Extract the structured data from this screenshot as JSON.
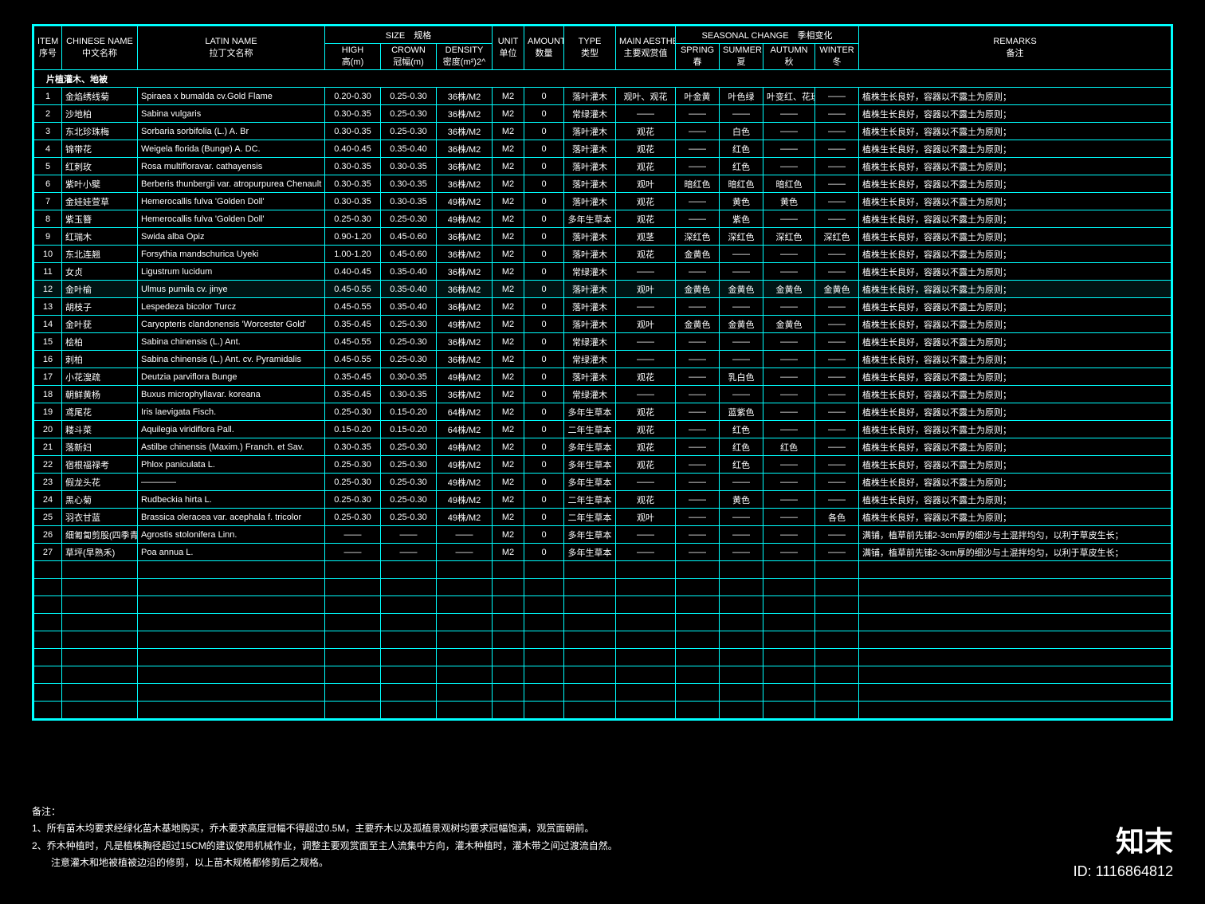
{
  "header": {
    "item": "ITEM\n序号",
    "chinese": "CHINESE NAME\n中文名称",
    "latin": "LATIN NAME\n拉丁文名称",
    "size_group": "SIZE　规格",
    "high": "HIGH\n高(m)",
    "crown": "CROWN\n冠幅(m)",
    "density": "DENSITY\n密度(m²)2^",
    "unit": "UNIT\n单位",
    "amount": "AMOUNT\n数量",
    "type": "TYPE\n类型",
    "aesthetics": "MAIN AESTHETICS\n主要观赏值",
    "seasonal_group": "SEASONAL CHANGE　季相变化",
    "spring": "SPRING\n春",
    "summer": "SUMMER\n夏",
    "autumn": "AUTUMN\n秋",
    "winter": "WINTER\n冬",
    "remarks": "REMARKS\n备注"
  },
  "section": "片植灌木、地被",
  "rows": [
    {
      "n": "1",
      "cn": "金焰绣线菊",
      "la": "Spiraea x bumalda cv.Gold Flame",
      "h": "0.20-0.30",
      "c": "0.25-0.30",
      "d": "36株/M2",
      "u": "M2",
      "a": "0",
      "t": "落叶灌木",
      "ae": "观叶、观花",
      "sp": "叶金黄",
      "su": "叶色绿",
      "au": "叶变红、花玫瑰红",
      "wi": "——",
      "r": "植株生长良好，容器以不露土为原则；"
    },
    {
      "n": "2",
      "cn": "沙地柏",
      "la": "Sabina vulgaris",
      "h": "0.30-0.35",
      "c": "0.25-0.30",
      "d": "36株/M2",
      "u": "M2",
      "a": "0",
      "t": "常绿灌木",
      "ae": "——",
      "sp": "——",
      "su": "——",
      "au": "——",
      "wi": "——",
      "r": "植株生长良好，容器以不露土为原则；"
    },
    {
      "n": "3",
      "cn": "东北珍珠梅",
      "la": "Sorbaria sorbifolia (L.) A. Br",
      "h": "0.30-0.35",
      "c": "0.25-0.30",
      "d": "36株/M2",
      "u": "M2",
      "a": "0",
      "t": "落叶灌木",
      "ae": "观花",
      "sp": "——",
      "su": "白色",
      "au": "——",
      "wi": "——",
      "r": "植株生长良好，容器以不露土为原则；"
    },
    {
      "n": "4",
      "cn": "锦带花",
      "la": "Weigela florida (Bunge) A. DC.",
      "h": "0.40-0.45",
      "c": "0.35-0.40",
      "d": "36株/M2",
      "u": "M2",
      "a": "0",
      "t": "落叶灌木",
      "ae": "观花",
      "sp": "——",
      "su": "红色",
      "au": "——",
      "wi": "——",
      "r": "植株生长良好，容器以不露土为原则；"
    },
    {
      "n": "5",
      "cn": "红刺玫",
      "la": "Rosa multifloravar. cathayensis",
      "h": "0.30-0.35",
      "c": "0.30-0.35",
      "d": "36株/M2",
      "u": "M2",
      "a": "0",
      "t": "落叶灌木",
      "ae": "观花",
      "sp": "——",
      "su": "红色",
      "au": "——",
      "wi": "——",
      "r": "植株生长良好，容器以不露土为原则；"
    },
    {
      "n": "6",
      "cn": "紫叶小檗",
      "la": "Berberis thunbergii var. atropurpurea Chenault",
      "h": "0.30-0.35",
      "c": "0.30-0.35",
      "d": "36株/M2",
      "u": "M2",
      "a": "0",
      "t": "落叶灌木",
      "ae": "观叶",
      "sp": "暗红色",
      "su": "暗红色",
      "au": "暗红色",
      "wi": "——",
      "r": "植株生长良好，容器以不露土为原则；"
    },
    {
      "n": "7",
      "cn": "金娃娃萱草",
      "la": "Hemerocallis fulva 'Golden Doll'",
      "h": "0.30-0.35",
      "c": "0.30-0.35",
      "d": "49株/M2",
      "u": "M2",
      "a": "0",
      "t": "落叶灌木",
      "ae": "观花",
      "sp": "——",
      "su": "黄色",
      "au": "黄色",
      "wi": "——",
      "r": "植株生长良好，容器以不露土为原则；"
    },
    {
      "n": "8",
      "cn": "紫玉簪",
      "la": "Hemerocallis fulva 'Golden Doll'",
      "h": "0.25-0.30",
      "c": "0.25-0.30",
      "d": "49株/M2",
      "u": "M2",
      "a": "0",
      "t": "多年生草本",
      "ae": "观花",
      "sp": "——",
      "su": "紫色",
      "au": "——",
      "wi": "——",
      "r": "植株生长良好，容器以不露土为原则；"
    },
    {
      "n": "9",
      "cn": "红瑞木",
      "la": "Swida alba Opiz",
      "h": "0.90-1.20",
      "c": "0.45-0.60",
      "d": "36株/M2",
      "u": "M2",
      "a": "0",
      "t": "落叶灌木",
      "ae": "观茎",
      "sp": "深红色",
      "su": "深红色",
      "au": "深红色",
      "wi": "深红色",
      "r": "植株生长良好，容器以不露土为原则；"
    },
    {
      "n": "10",
      "cn": "东北连翘",
      "la": "Forsythia mandschurica Uyeki",
      "h": "1.00-1.20",
      "c": "0.45-0.60",
      "d": "36株/M2",
      "u": "M2",
      "a": "0",
      "t": "落叶灌木",
      "ae": "观花",
      "sp": "金黄色",
      "su": "——",
      "au": "——",
      "wi": "——",
      "r": "植株生长良好，容器以不露土为原则；"
    },
    {
      "n": "11",
      "cn": "女贞",
      "la": "Ligustrum lucidum",
      "h": "0.40-0.45",
      "c": "0.35-0.40",
      "d": "36株/M2",
      "u": "M2",
      "a": "0",
      "t": "常绿灌木",
      "ae": "——",
      "sp": "——",
      "su": "——",
      "au": "——",
      "wi": "——",
      "r": "植株生长良好，容器以不露土为原则；"
    },
    {
      "n": "12",
      "cn": "金叶榆",
      "la": "Ulmus pumila cv. jinye",
      "h": "0.45-0.55",
      "c": "0.35-0.40",
      "d": "36株/M2",
      "u": "M2",
      "a": "0",
      "t": "落叶灌木",
      "ae": "观叶",
      "sp": "金黄色",
      "su": "金黄色",
      "au": "金黄色",
      "wi": "金黄色",
      "r": "植株生长良好，容器以不露土为原则；",
      "hl": true
    },
    {
      "n": "13",
      "cn": "胡枝子",
      "la": "Lespedeza bicolor Turcz",
      "h": "0.45-0.55",
      "c": "0.35-0.40",
      "d": "36株/M2",
      "u": "M2",
      "a": "0",
      "t": "落叶灌木",
      "ae": "——",
      "sp": "——",
      "su": "——",
      "au": "——",
      "wi": "——",
      "r": "植株生长良好，容器以不露土为原则；"
    },
    {
      "n": "14",
      "cn": "金叶莸",
      "la": "Caryopteris clandonensis 'Worcester Gold'",
      "h": "0.35-0.45",
      "c": "0.25-0.30",
      "d": "49株/M2",
      "u": "M2",
      "a": "0",
      "t": "落叶灌木",
      "ae": "观叶",
      "sp": "金黄色",
      "su": "金黄色",
      "au": "金黄色",
      "wi": "——",
      "r": "植株生长良好，容器以不露土为原则；"
    },
    {
      "n": "15",
      "cn": "桧柏",
      "la": "Sabina chinensis (L.) Ant.",
      "h": "0.45-0.55",
      "c": "0.25-0.30",
      "d": "36株/M2",
      "u": "M2",
      "a": "0",
      "t": "常绿灌木",
      "ae": "——",
      "sp": "——",
      "su": "——",
      "au": "——",
      "wi": "——",
      "r": "植株生长良好，容器以不露土为原则；"
    },
    {
      "n": "16",
      "cn": "刺柏",
      "la": "Sabina chinensis (L.) Ant. cv. Pyramidalis",
      "h": "0.45-0.55",
      "c": "0.25-0.30",
      "d": "36株/M2",
      "u": "M2",
      "a": "0",
      "t": "常绿灌木",
      "ae": "——",
      "sp": "——",
      "su": "——",
      "au": "——",
      "wi": "——",
      "r": "植株生长良好，容器以不露土为原则；"
    },
    {
      "n": "17",
      "cn": "小花溲疏",
      "la": "Deutzia parviflora Bunge",
      "h": "0.35-0.45",
      "c": "0.30-0.35",
      "d": "49株/M2",
      "u": "M2",
      "a": "0",
      "t": "落叶灌木",
      "ae": "观花",
      "sp": "——",
      "su": "乳白色",
      "au": "——",
      "wi": "——",
      "r": "植株生长良好，容器以不露土为原则；"
    },
    {
      "n": "18",
      "cn": "朝鲜黄杨",
      "la": "Buxus microphyllavar. koreana",
      "h": "0.35-0.45",
      "c": "0.30-0.35",
      "d": "36株/M2",
      "u": "M2",
      "a": "0",
      "t": "常绿灌木",
      "ae": "——",
      "sp": "——",
      "su": "——",
      "au": "——",
      "wi": "——",
      "r": "植株生长良好，容器以不露土为原则；"
    },
    {
      "n": "19",
      "cn": "鸢尾花",
      "la": "Iris laevigata Fisch.",
      "h": "0.25-0.30",
      "c": "0.15-0.20",
      "d": "64株/M2",
      "u": "M2",
      "a": "0",
      "t": "多年生草本",
      "ae": "观花",
      "sp": "——",
      "su": "蓝紫色",
      "au": "——",
      "wi": "——",
      "r": "植株生长良好，容器以不露土为原则；"
    },
    {
      "n": "20",
      "cn": "耧斗菜",
      "la": "Aquilegia viridiflora Pall.",
      "h": "0.15-0.20",
      "c": "0.15-0.20",
      "d": "64株/M2",
      "u": "M2",
      "a": "0",
      "t": "二年生草本",
      "ae": "观花",
      "sp": "——",
      "su": "红色",
      "au": "——",
      "wi": "——",
      "r": "植株生长良好，容器以不露土为原则；"
    },
    {
      "n": "21",
      "cn": "落新妇",
      "la": "Astilbe chinensis (Maxim.) Franch. et Sav.",
      "h": "0.30-0.35",
      "c": "0.25-0.30",
      "d": "49株/M2",
      "u": "M2",
      "a": "0",
      "t": "多年生草本",
      "ae": "观花",
      "sp": "——",
      "su": "红色",
      "au": "红色",
      "wi": "——",
      "r": "植株生长良好，容器以不露土为原则；"
    },
    {
      "n": "22",
      "cn": "宿根福禄考",
      "la": "Phlox paniculata L.",
      "h": "0.25-0.30",
      "c": "0.25-0.30",
      "d": "49株/M2",
      "u": "M2",
      "a": "0",
      "t": "多年生草本",
      "ae": "观花",
      "sp": "——",
      "su": "红色",
      "au": "——",
      "wi": "——",
      "r": "植株生长良好，容器以不露土为原则；"
    },
    {
      "n": "23",
      "cn": "假龙头花",
      "la": "————",
      "h": "0.25-0.30",
      "c": "0.25-0.30",
      "d": "49株/M2",
      "u": "M2",
      "a": "0",
      "t": "多年生草本",
      "ae": "——",
      "sp": "——",
      "su": "——",
      "au": "——",
      "wi": "——",
      "r": "植株生长良好，容器以不露土为原则；"
    },
    {
      "n": "24",
      "cn": "黑心菊",
      "la": "Rudbeckia hirta L.",
      "h": "0.25-0.30",
      "c": "0.25-0.30",
      "d": "49株/M2",
      "u": "M2",
      "a": "0",
      "t": "二年生草本",
      "ae": "观花",
      "sp": "——",
      "su": "黄色",
      "au": "——",
      "wi": "——",
      "r": "植株生长良好，容器以不露土为原则；"
    },
    {
      "n": "25",
      "cn": "羽衣甘蓝",
      "la": "Brassica oleracea var. acephala f. tricolor",
      "h": "0.25-0.30",
      "c": "0.25-0.30",
      "d": "49株/M2",
      "u": "M2",
      "a": "0",
      "t": "二年生草本",
      "ae": "观叶",
      "sp": "——",
      "su": "——",
      "au": "——",
      "wi": "各色",
      "r": "植株生长良好，容器以不露土为原则；"
    },
    {
      "n": "26",
      "cn": "细匍匐剪股(四季青)",
      "la": "Agrostis stolonifera Linn.",
      "h": "——",
      "c": "——",
      "d": "——",
      "u": "M2",
      "a": "0",
      "t": "多年生草本",
      "ae": "——",
      "sp": "——",
      "su": "——",
      "au": "——",
      "wi": "——",
      "r": "满铺，植草前先铺2-3cm厚的细沙与土混拌均匀，以利于草皮生长；"
    },
    {
      "n": "27",
      "cn": "草坪(早熟禾)",
      "la": "Poa annua L.",
      "h": "——",
      "c": "——",
      "d": "——",
      "u": "M2",
      "a": "0",
      "t": "多年生草本",
      "ae": "——",
      "sp": "——",
      "su": "——",
      "au": "——",
      "wi": "——",
      "r": "满铺，植草前先铺2-3cm厚的细沙与土混拌均匀，以利于草皮生长；"
    }
  ],
  "empty_rows": 9,
  "footer": {
    "title": "备注：",
    "l1": "1、所有苗木均要求经绿化苗木基地购买，乔木要求高度冠幅不得超过0.5M，主要乔木以及孤植景观树均要求冠幅饱满，观赏面朝前。",
    "l2": "2、乔木种植时，凡是植株胸径超过15CM的建议使用机械作业，调整主要观赏面至主人流集中方向，灌木种植时，灌木带之间过渡流自然。",
    "l3": "　　注意灌木和地被植被边沿的修剪，以上苗木规格都修剪后之规格。"
  },
  "watermark": {
    "brand": "知末",
    "id": "ID: 1116864812"
  },
  "colors": {
    "line": "#00ffff",
    "bg": "#000000",
    "text": "#ffffff"
  }
}
